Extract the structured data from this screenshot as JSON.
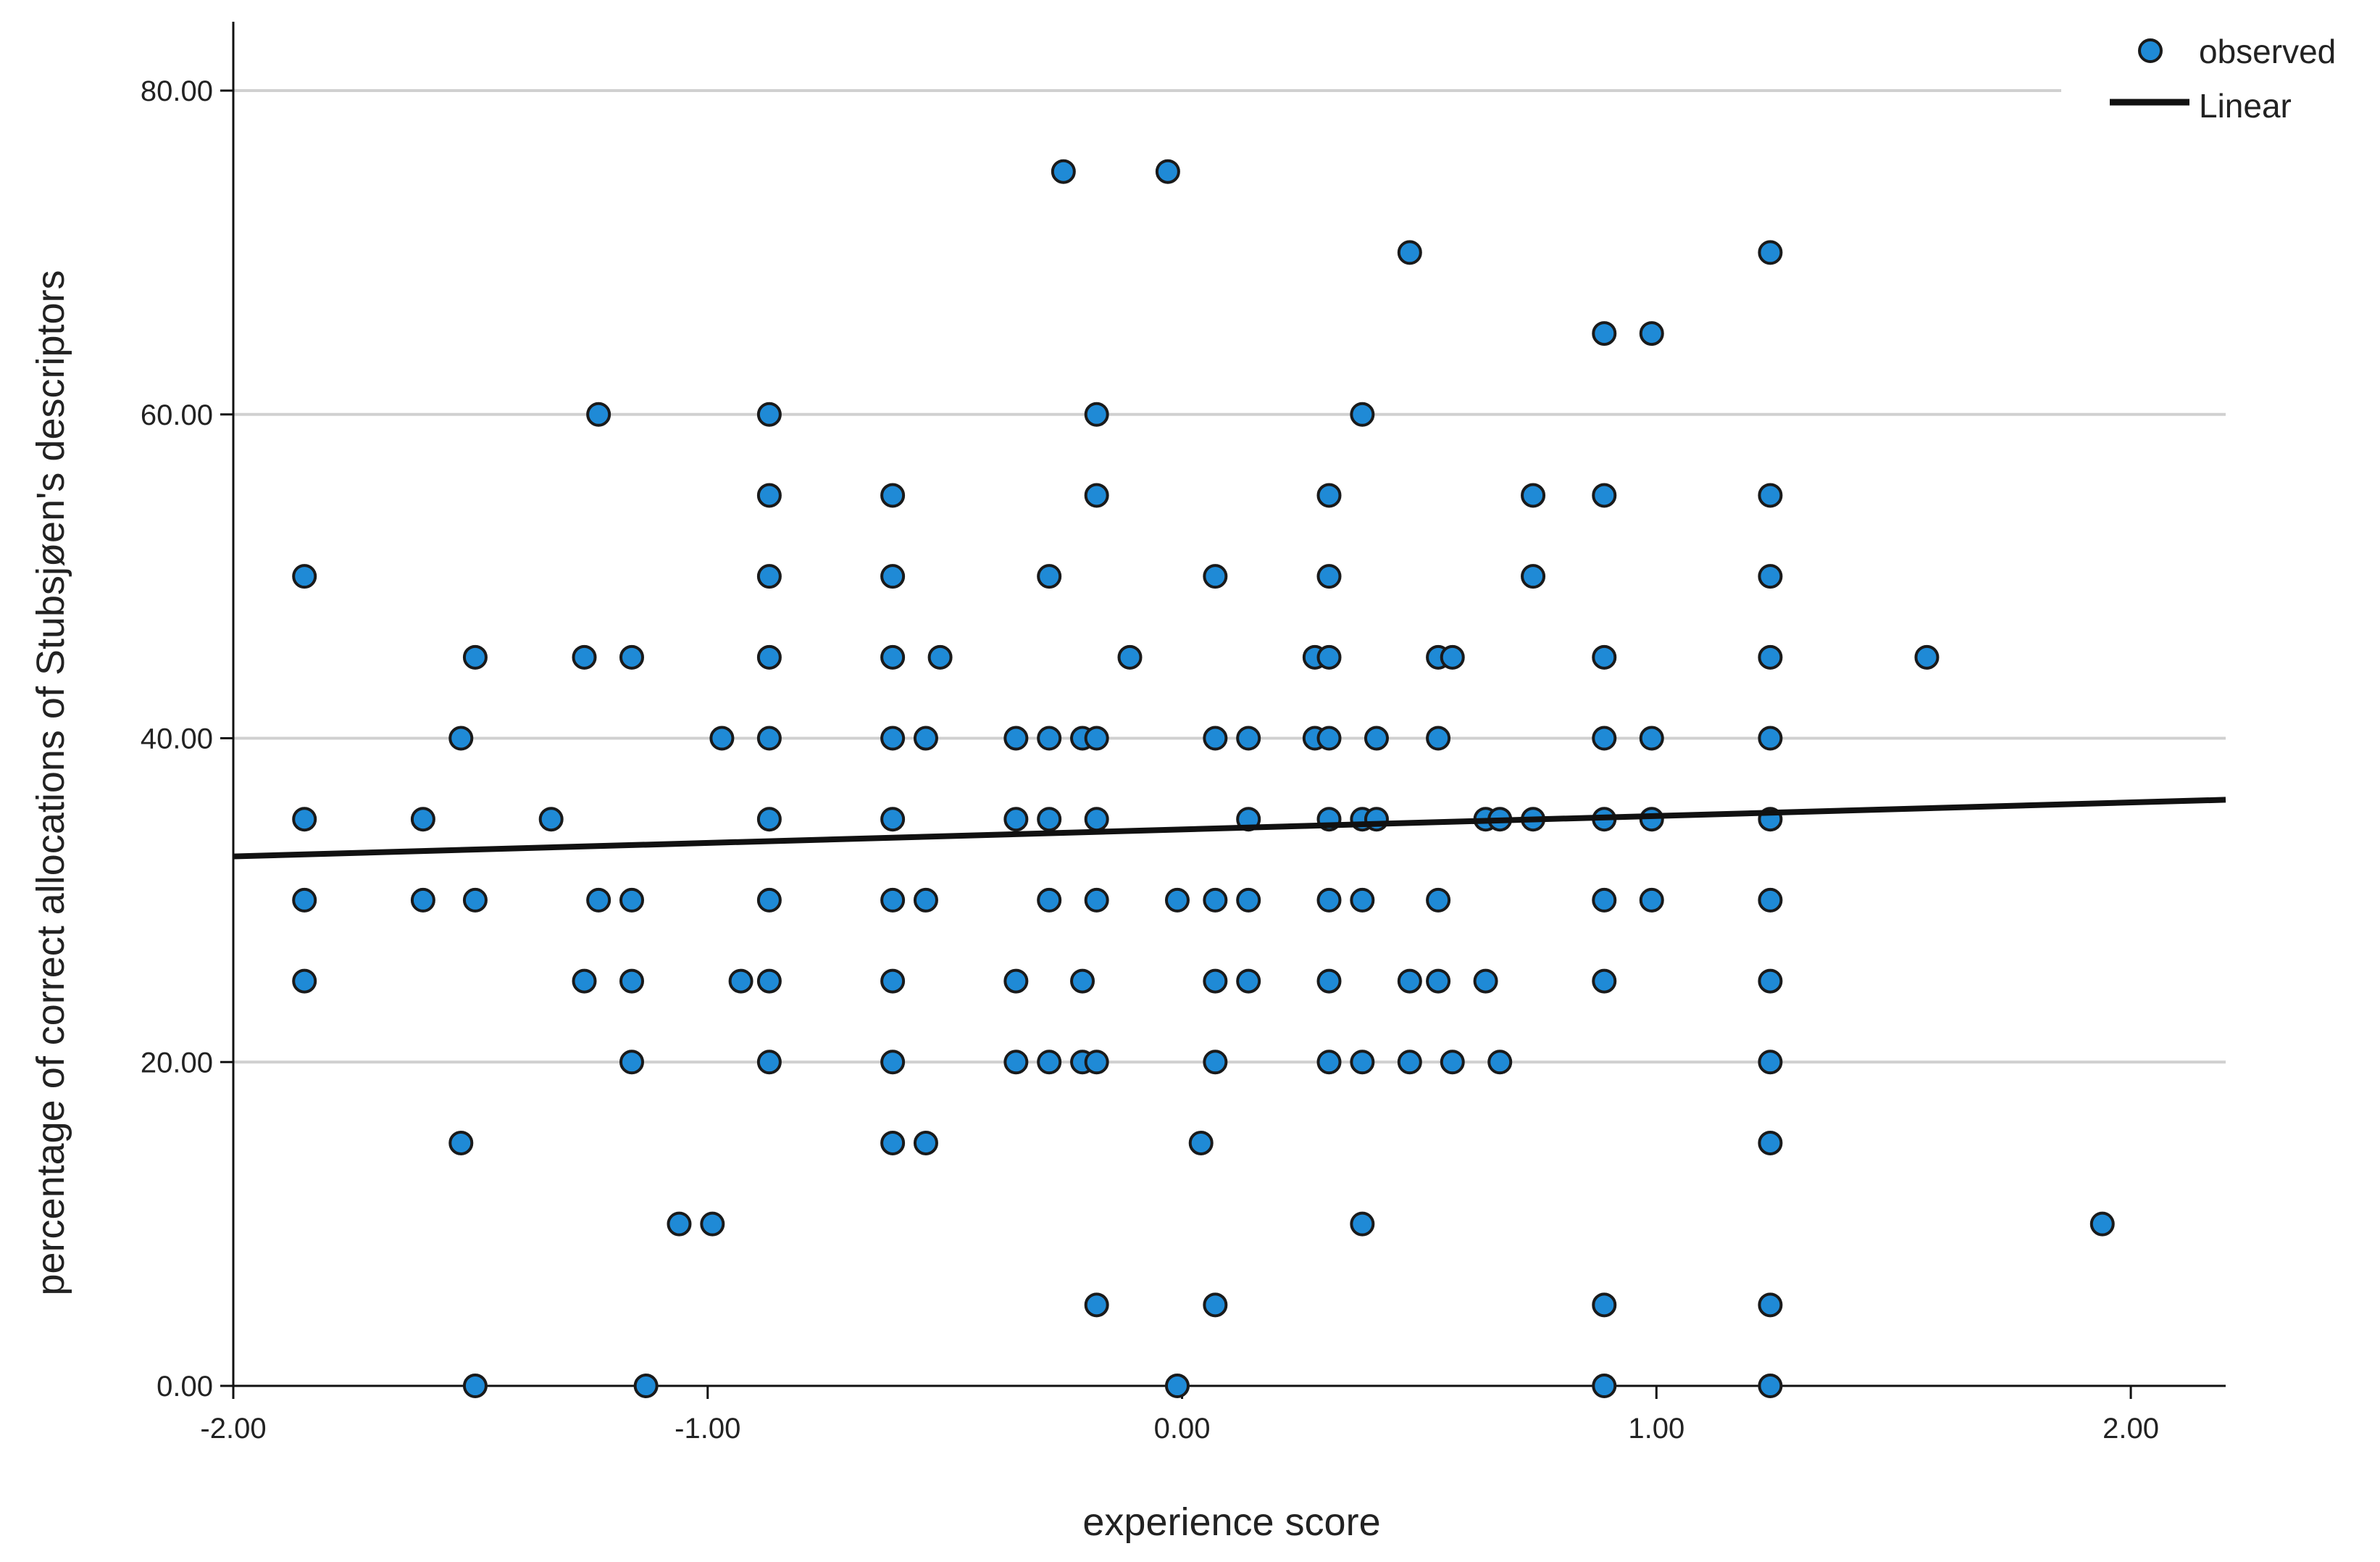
{
  "chart_data": {
    "type": "scatter",
    "xlabel": "experience score",
    "ylabel": "percentage of correct allocations of Stubsjøen's descriptors",
    "xlim": [
      -2.0,
      2.2
    ],
    "ylim": [
      0,
      80
    ],
    "x_ticks": [
      "-2.00",
      "-1.00",
      "0.00",
      "1.00",
      "2.00"
    ],
    "y_ticks": [
      "0.00",
      "20.00",
      "40.00",
      "60.00",
      "80.00"
    ],
    "x_tick_values": [
      -2,
      -1,
      0,
      1,
      2
    ],
    "y_tick_values": [
      0,
      20,
      40,
      60,
      80
    ],
    "grid": "horizontal",
    "legend": {
      "position": "top-right",
      "items": [
        {
          "label": "observed",
          "kind": "marker"
        },
        {
          "label": "Linear",
          "kind": "line"
        }
      ]
    },
    "colors": {
      "marker_fill": "#1f8ad6",
      "marker_edge": "#1a1a1a",
      "fit_line": "#111111",
      "grid": "#d0d0d0"
    },
    "fit_line": {
      "label": "Linear",
      "x": [
        -2.0,
        2.2
      ],
      "y": [
        32.7,
        36.2
      ]
    },
    "series": [
      {
        "label": "observed",
        "points": [
          [
            -1.85,
            50
          ],
          [
            -1.85,
            35
          ],
          [
            -1.85,
            30
          ],
          [
            -1.85,
            25
          ],
          [
            -1.6,
            35
          ],
          [
            -1.6,
            30
          ],
          [
            -1.52,
            40
          ],
          [
            -1.52,
            15
          ],
          [
            -1.49,
            45
          ],
          [
            -1.49,
            30
          ],
          [
            -1.49,
            0
          ],
          [
            -1.33,
            35
          ],
          [
            -1.26,
            45
          ],
          [
            -1.26,
            25
          ],
          [
            -1.23,
            60
          ],
          [
            -1.23,
            30
          ],
          [
            -1.16,
            45
          ],
          [
            -1.16,
            30
          ],
          [
            -1.16,
            25
          ],
          [
            -1.16,
            20
          ],
          [
            -1.13,
            0
          ],
          [
            -1.06,
            10
          ],
          [
            -0.99,
            10
          ],
          [
            -0.97,
            40
          ],
          [
            -0.93,
            25
          ],
          [
            -0.87,
            60
          ],
          [
            -0.87,
            55
          ],
          [
            -0.87,
            50
          ],
          [
            -0.87,
            45
          ],
          [
            -0.87,
            40
          ],
          [
            -0.87,
            35
          ],
          [
            -0.87,
            30
          ],
          [
            -0.87,
            25
          ],
          [
            -0.87,
            20
          ],
          [
            -0.61,
            55
          ],
          [
            -0.61,
            50
          ],
          [
            -0.61,
            45
          ],
          [
            -0.61,
            40
          ],
          [
            -0.61,
            35
          ],
          [
            -0.61,
            30
          ],
          [
            -0.61,
            25
          ],
          [
            -0.61,
            20
          ],
          [
            -0.61,
            15
          ],
          [
            -0.54,
            40
          ],
          [
            -0.54,
            30
          ],
          [
            -0.54,
            15
          ],
          [
            -0.51,
            45
          ],
          [
            -0.35,
            40
          ],
          [
            -0.35,
            35
          ],
          [
            -0.35,
            25
          ],
          [
            -0.35,
            20
          ],
          [
            -0.28,
            50
          ],
          [
            -0.28,
            40
          ],
          [
            -0.28,
            35
          ],
          [
            -0.28,
            30
          ],
          [
            -0.28,
            20
          ],
          [
            -0.25,
            75
          ],
          [
            -0.21,
            40
          ],
          [
            -0.21,
            25
          ],
          [
            -0.21,
            20
          ],
          [
            -0.18,
            60
          ],
          [
            -0.18,
            55
          ],
          [
            -0.18,
            40
          ],
          [
            -0.18,
            35
          ],
          [
            -0.18,
            30
          ],
          [
            -0.18,
            20
          ],
          [
            -0.18,
            5
          ],
          [
            -0.11,
            45
          ],
          [
            -0.03,
            75
          ],
          [
            -0.01,
            30
          ],
          [
            -0.01,
            0
          ],
          [
            0.04,
            15
          ],
          [
            0.07,
            50
          ],
          [
            0.07,
            40
          ],
          [
            0.07,
            30
          ],
          [
            0.07,
            25
          ],
          [
            0.07,
            20
          ],
          [
            0.07,
            5
          ],
          [
            0.14,
            40
          ],
          [
            0.14,
            35
          ],
          [
            0.14,
            30
          ],
          [
            0.14,
            25
          ],
          [
            0.28,
            45
          ],
          [
            0.28,
            40
          ],
          [
            0.31,
            55
          ],
          [
            0.31,
            50
          ],
          [
            0.31,
            45
          ],
          [
            0.31,
            40
          ],
          [
            0.31,
            35
          ],
          [
            0.31,
            30
          ],
          [
            0.31,
            25
          ],
          [
            0.31,
            20
          ],
          [
            0.38,
            60
          ],
          [
            0.38,
            35
          ],
          [
            0.38,
            30
          ],
          [
            0.38,
            20
          ],
          [
            0.38,
            10
          ],
          [
            0.41,
            40
          ],
          [
            0.41,
            35
          ],
          [
            0.48,
            70
          ],
          [
            0.48,
            25
          ],
          [
            0.48,
            20
          ],
          [
            0.54,
            45
          ],
          [
            0.54,
            40
          ],
          [
            0.54,
            30
          ],
          [
            0.54,
            25
          ],
          [
            0.57,
            45
          ],
          [
            0.57,
            20
          ],
          [
            0.64,
            35
          ],
          [
            0.64,
            25
          ],
          [
            0.67,
            35
          ],
          [
            0.67,
            20
          ],
          [
            0.74,
            55
          ],
          [
            0.74,
            50
          ],
          [
            0.74,
            35
          ],
          [
            0.89,
            65
          ],
          [
            0.89,
            55
          ],
          [
            0.89,
            45
          ],
          [
            0.89,
            40
          ],
          [
            0.89,
            35
          ],
          [
            0.89,
            30
          ],
          [
            0.89,
            25
          ],
          [
            0.89,
            5
          ],
          [
            0.89,
            0
          ],
          [
            0.99,
            65
          ],
          [
            0.99,
            40
          ],
          [
            0.99,
            35
          ],
          [
            0.99,
            30
          ],
          [
            1.24,
            70
          ],
          [
            1.24,
            55
          ],
          [
            1.24,
            50
          ],
          [
            1.24,
            45
          ],
          [
            1.24,
            40
          ],
          [
            1.24,
            35
          ],
          [
            1.24,
            30
          ],
          [
            1.24,
            25
          ],
          [
            1.24,
            20
          ],
          [
            1.24,
            15
          ],
          [
            1.24,
            5
          ],
          [
            1.24,
            0
          ],
          [
            1.57,
            45
          ],
          [
            1.94,
            10
          ]
        ]
      }
    ]
  }
}
